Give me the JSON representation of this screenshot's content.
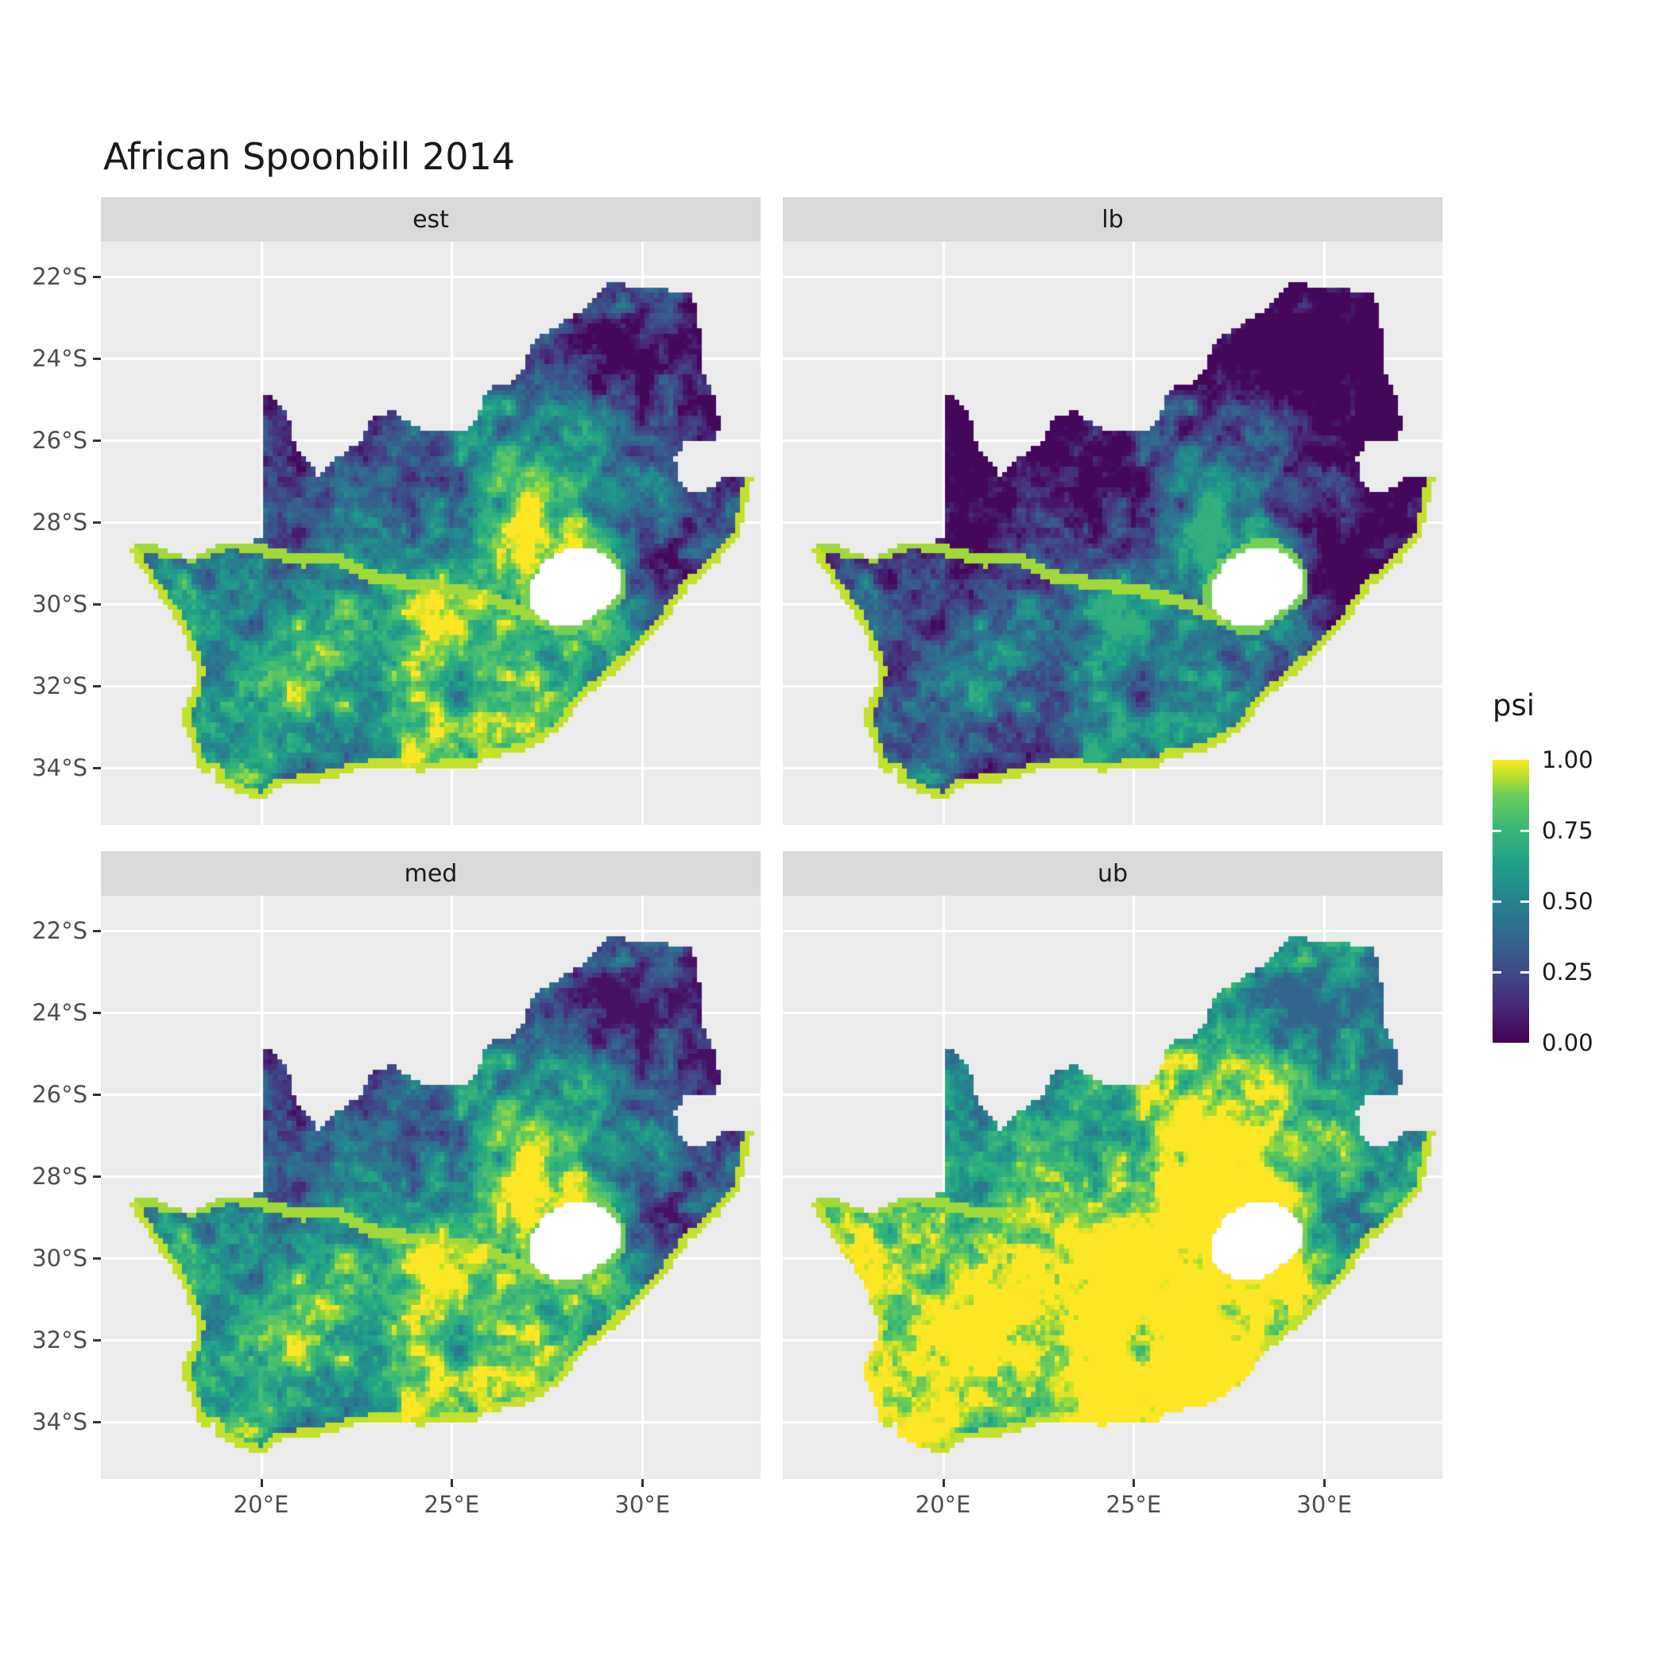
{
  "title": "African Spoonbill 2014",
  "facets": [
    {
      "label": "est"
    },
    {
      "label": "lb"
    },
    {
      "label": "med"
    },
    {
      "label": "ub"
    }
  ],
  "axes": {
    "x": {
      "ticks": [
        "20°E",
        "25°E",
        "30°E"
      ],
      "values": [
        20,
        25,
        30
      ]
    },
    "y": {
      "ticks": [
        "22°S",
        "24°S",
        "26°S",
        "28°S",
        "30°S",
        "32°S",
        "34°S"
      ],
      "values": [
        -22,
        -24,
        -26,
        -28,
        -30,
        -32,
        -34
      ]
    }
  },
  "legend": {
    "title": "psi",
    "labels": [
      "1.00",
      "0.75",
      "0.50",
      "0.25",
      "0.00"
    ],
    "values": [
      1.0,
      0.75,
      0.5,
      0.25,
      0.0
    ]
  },
  "colors": {
    "background": "#FFFFFF",
    "panel_bg": "#EBEBEB",
    "strip_bg": "#D9D9D9",
    "grid": "#FFFFFF",
    "tick": "#333333",
    "axis_text": "#4D4D4D",
    "text": "#1A1A1A",
    "hole_fill": "#FFFFFF",
    "viridis_stops": [
      [
        0,
        "#440154"
      ],
      [
        0.125,
        "#482878"
      ],
      [
        0.25,
        "#3E4A89"
      ],
      [
        0.375,
        "#31688E"
      ],
      [
        0.5,
        "#26828E"
      ],
      [
        0.625,
        "#1F9E89"
      ],
      [
        0.75,
        "#35B779"
      ],
      [
        0.875,
        "#6DCD59"
      ],
      [
        0.9375,
        "#B4DE2C"
      ],
      [
        1,
        "#FDE725"
      ]
    ]
  },
  "chart_data": {
    "type": "heatmap",
    "subtype": "faceted-raster-map",
    "title": "African Spoonbill 2014",
    "region": "South Africa",
    "variable": "psi",
    "value_range": [
      0,
      1
    ],
    "facets": [
      "est",
      "lb",
      "med",
      "ub"
    ],
    "legend_ticks": [
      1.0,
      0.75,
      0.5,
      0.25,
      0.0
    ],
    "x_ticks_deg_east": [
      20,
      25,
      30
    ],
    "y_ticks_deg_south": [
      22,
      24,
      26,
      28,
      30,
      32,
      34
    ],
    "extent": {
      "lon": [
        15.8,
        33.1
      ],
      "lat": [
        -35.4,
        -21.14
      ]
    },
    "cell_deg": 0.125,
    "facet_transforms": {
      "est": [
        1,
        0
      ],
      "lb": [
        1,
        -0.28
      ],
      "med": [
        1,
        0.05
      ],
      "ub": [
        1,
        0.36
      ]
    },
    "boosts": {
      "coast": [
        0.2,
        0.95
      ],
      "river": [
        0.14,
        0.92
      ],
      "lesotho_ring": [
        0.16,
        0.88
      ]
    },
    "field": {
      "base": 0.42,
      "gaussians": [
        [
          25.5,
          -30.8,
          3.2,
          0.48
        ],
        [
          19.3,
          -33.5,
          1.8,
          0.18
        ],
        [
          27.4,
          -26.8,
          1.3,
          0.28
        ],
        [
          22.0,
          -26.3,
          2.5,
          -0.35
        ],
        [
          30.0,
          -23.6,
          2.2,
          -0.36
        ],
        [
          30.9,
          -29.0,
          1.6,
          -0.26
        ]
      ],
      "octaves": [
        [
          1.6,
          0.4,
          0,
          0
        ],
        [
          0.6,
          0.38,
          7,
          3
        ],
        [
          0.25,
          0.3,
          17,
          9
        ]
      ],
      "cell_jitter": 0.12
    },
    "outline": [
      [
        16.45,
        -28.63
      ],
      [
        17.1,
        -28.5
      ],
      [
        17.6,
        -28.75
      ],
      [
        18.2,
        -28.88
      ],
      [
        19.0,
        -28.5
      ],
      [
        19.6,
        -28.5
      ],
      [
        19.99,
        -28.42
      ],
      [
        19.99,
        -24.76
      ],
      [
        20.35,
        -25.0
      ],
      [
        20.7,
        -25.4
      ],
      [
        20.9,
        -26.1
      ],
      [
        21.5,
        -26.85
      ],
      [
        22.05,
        -26.4
      ],
      [
        22.65,
        -26.0
      ],
      [
        22.9,
        -25.45
      ],
      [
        23.45,
        -25.3
      ],
      [
        24.0,
        -25.65
      ],
      [
        24.75,
        -25.82
      ],
      [
        25.35,
        -25.72
      ],
      [
        25.65,
        -25.48
      ],
      [
        25.9,
        -24.73
      ],
      [
        26.45,
        -24.62
      ],
      [
        26.85,
        -24.24
      ],
      [
        27.15,
        -23.58
      ],
      [
        27.75,
        -23.2
      ],
      [
        28.3,
        -22.9
      ],
      [
        29.05,
        -22.15
      ],
      [
        29.4,
        -22.18
      ],
      [
        30.0,
        -22.32
      ],
      [
        30.6,
        -22.32
      ],
      [
        31.3,
        -22.4
      ],
      [
        31.55,
        -23.5
      ],
      [
        31.55,
        -24.3
      ],
      [
        31.9,
        -24.9
      ],
      [
        32.02,
        -25.6
      ],
      [
        31.95,
        -25.95
      ],
      [
        31.1,
        -26.05
      ],
      [
        30.85,
        -26.45
      ],
      [
        30.9,
        -26.85
      ],
      [
        31.15,
        -27.2
      ],
      [
        31.6,
        -27.3
      ],
      [
        32.1,
        -26.9
      ],
      [
        32.9,
        -26.86
      ],
      [
        32.55,
        -28.3
      ],
      [
        32.0,
        -28.95
      ],
      [
        31.25,
        -29.55
      ],
      [
        30.65,
        -30.35
      ],
      [
        29.95,
        -31.05
      ],
      [
        29.25,
        -31.7
      ],
      [
        28.45,
        -32.3
      ],
      [
        27.85,
        -33.05
      ],
      [
        26.9,
        -33.6
      ],
      [
        25.95,
        -33.75
      ],
      [
        25.65,
        -34.0
      ],
      [
        25.0,
        -33.97
      ],
      [
        24.2,
        -34.1
      ],
      [
        23.4,
        -33.98
      ],
      [
        22.55,
        -34.05
      ],
      [
        21.5,
        -34.35
      ],
      [
        20.5,
        -34.45
      ],
      [
        20.0,
        -34.82
      ],
      [
        19.4,
        -34.6
      ],
      [
        18.85,
        -34.35
      ],
      [
        18.8,
        -34.05
      ],
      [
        18.42,
        -34.18
      ],
      [
        18.3,
        -33.88
      ],
      [
        18.05,
        -33.1
      ],
      [
        17.88,
        -32.75
      ],
      [
        18.27,
        -32.0
      ],
      [
        18.3,
        -31.55
      ],
      [
        17.85,
        -30.5
      ],
      [
        17.1,
        -29.5
      ],
      [
        16.85,
        -29.1
      ]
    ],
    "lesotho_hole": [
      [
        27.0,
        -29.6
      ],
      [
        27.3,
        -29.1
      ],
      [
        27.55,
        -28.88
      ],
      [
        28.15,
        -28.6
      ],
      [
        28.7,
        -28.58
      ],
      [
        29.15,
        -28.92
      ],
      [
        29.45,
        -29.3
      ],
      [
        29.35,
        -29.78
      ],
      [
        28.9,
        -30.15
      ],
      [
        28.3,
        -30.55
      ],
      [
        27.75,
        -30.58
      ],
      [
        27.3,
        -30.3
      ],
      [
        27.0,
        -30.0
      ]
    ],
    "coast": [
      [
        32.9,
        -26.86
      ],
      [
        32.55,
        -28.3
      ],
      [
        32.0,
        -28.95
      ],
      [
        31.25,
        -29.55
      ],
      [
        30.65,
        -30.35
      ],
      [
        29.95,
        -31.05
      ],
      [
        29.25,
        -31.7
      ],
      [
        28.45,
        -32.3
      ],
      [
        27.85,
        -33.05
      ],
      [
        26.9,
        -33.6
      ],
      [
        25.95,
        -33.75
      ],
      [
        25.65,
        -34.0
      ],
      [
        25.0,
        -33.97
      ],
      [
        24.2,
        -34.1
      ],
      [
        23.4,
        -33.98
      ],
      [
        22.55,
        -34.05
      ],
      [
        21.5,
        -34.35
      ],
      [
        20.5,
        -34.45
      ],
      [
        20.0,
        -34.82
      ],
      [
        19.4,
        -34.6
      ],
      [
        18.85,
        -34.35
      ],
      [
        18.8,
        -34.05
      ],
      [
        18.42,
        -34.18
      ],
      [
        18.3,
        -33.88
      ],
      [
        18.05,
        -33.1
      ],
      [
        17.88,
        -32.75
      ],
      [
        18.27,
        -32.0
      ],
      [
        18.3,
        -31.55
      ],
      [
        17.85,
        -30.5
      ],
      [
        17.1,
        -29.5
      ],
      [
        16.85,
        -29.1
      ],
      [
        16.45,
        -28.63
      ]
    ],
    "orange_river": [
      [
        16.45,
        -28.6
      ],
      [
        17.6,
        -28.72
      ],
      [
        18.2,
        -28.85
      ],
      [
        19.2,
        -28.5
      ],
      [
        20.2,
        -28.72
      ],
      [
        21.1,
        -28.95
      ],
      [
        21.9,
        -28.85
      ],
      [
        22.8,
        -29.3
      ],
      [
        23.6,
        -29.45
      ],
      [
        24.4,
        -29.55
      ],
      [
        25.1,
        -29.65
      ],
      [
        25.7,
        -29.8
      ],
      [
        26.4,
        -30.0
      ],
      [
        27.0,
        -30.25
      ],
      [
        27.35,
        -30.4
      ]
    ]
  }
}
